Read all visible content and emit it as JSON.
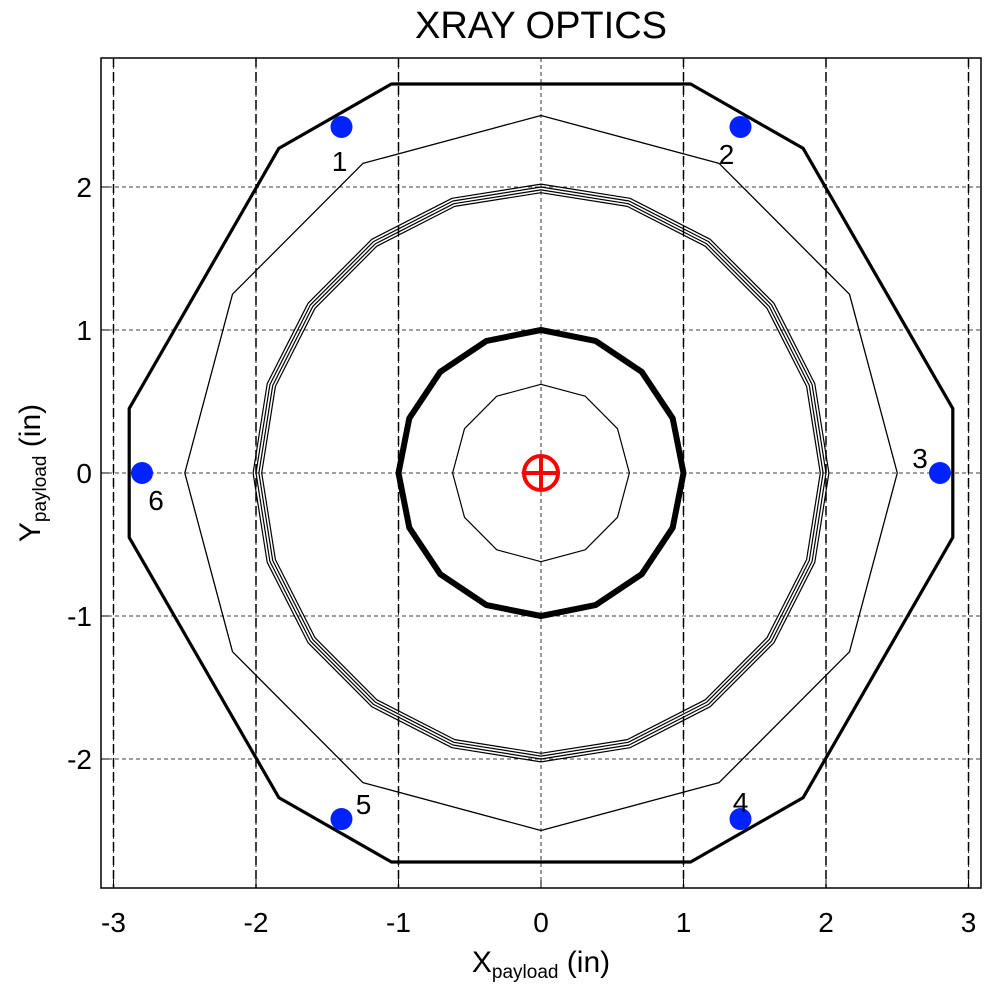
{
  "chart_data": {
    "type": "scatter",
    "title": "XRAY OPTICS",
    "xlabel": {
      "main": "X",
      "sub": "payload",
      "unit": " (in)"
    },
    "ylabel": {
      "main": "Y",
      "sub": "payload",
      "unit": " (in)"
    },
    "xlim": [
      -3.1,
      3.1
    ],
    "ylim": [
      -2.9,
      2.9
    ],
    "xticks": [
      -3,
      -2,
      -1,
      0,
      1,
      2,
      3
    ],
    "yticks": [
      -2,
      -1,
      0,
      1,
      2
    ],
    "xtick_labels": [
      "-3",
      "-2",
      "-1",
      "0",
      "1",
      "2",
      "3"
    ],
    "ytick_labels": [
      "-2",
      "-1",
      "0",
      "1",
      "2"
    ],
    "grid": true,
    "dashed_lines_x": [
      -3,
      -2,
      -1,
      1,
      2,
      3
    ],
    "points": [
      {
        "label": "1",
        "x": -1.4,
        "y": 2.42
      },
      {
        "label": "2",
        "x": 1.4,
        "y": 2.42
      },
      {
        "label": "3",
        "x": 2.8,
        "y": 0
      },
      {
        "label": "4",
        "x": 1.4,
        "y": -2.42
      },
      {
        "label": "5",
        "x": -1.4,
        "y": -2.42
      },
      {
        "label": "6",
        "x": -2.8,
        "y": 0
      }
    ],
    "outer_octagon": [
      [
        -1.05,
        2.72
      ],
      [
        1.05,
        2.72
      ],
      [
        1.84,
        2.27
      ],
      [
        2.89,
        0.45
      ],
      [
        2.89,
        -0.45
      ],
      [
        1.84,
        -2.27
      ],
      [
        1.05,
        -2.72
      ],
      [
        -1.05,
        -2.72
      ],
      [
        -1.84,
        -2.27
      ],
      [
        -2.89,
        -0.45
      ],
      [
        -2.89,
        0.45
      ],
      [
        -1.84,
        2.27
      ]
    ],
    "polygons": [
      {
        "sides": 12,
        "radius": 2.5
      },
      {
        "sides": 20,
        "radius": 1.96
      },
      {
        "sides": 20,
        "radius": 1.98
      },
      {
        "sides": 20,
        "radius": 2.0
      },
      {
        "sides": 20,
        "radius": 2.02
      },
      {
        "sides": 16,
        "radius": 1.0
      },
      {
        "sides": 12,
        "radius": 0.62
      }
    ],
    "center_marker": {
      "x": 0,
      "y": 0,
      "symbol": "crosshair-circle"
    }
  },
  "colors": {
    "points": "#0022ff",
    "center_marker": "#ff0000",
    "lines": "#000000",
    "background": "#ffffff"
  }
}
